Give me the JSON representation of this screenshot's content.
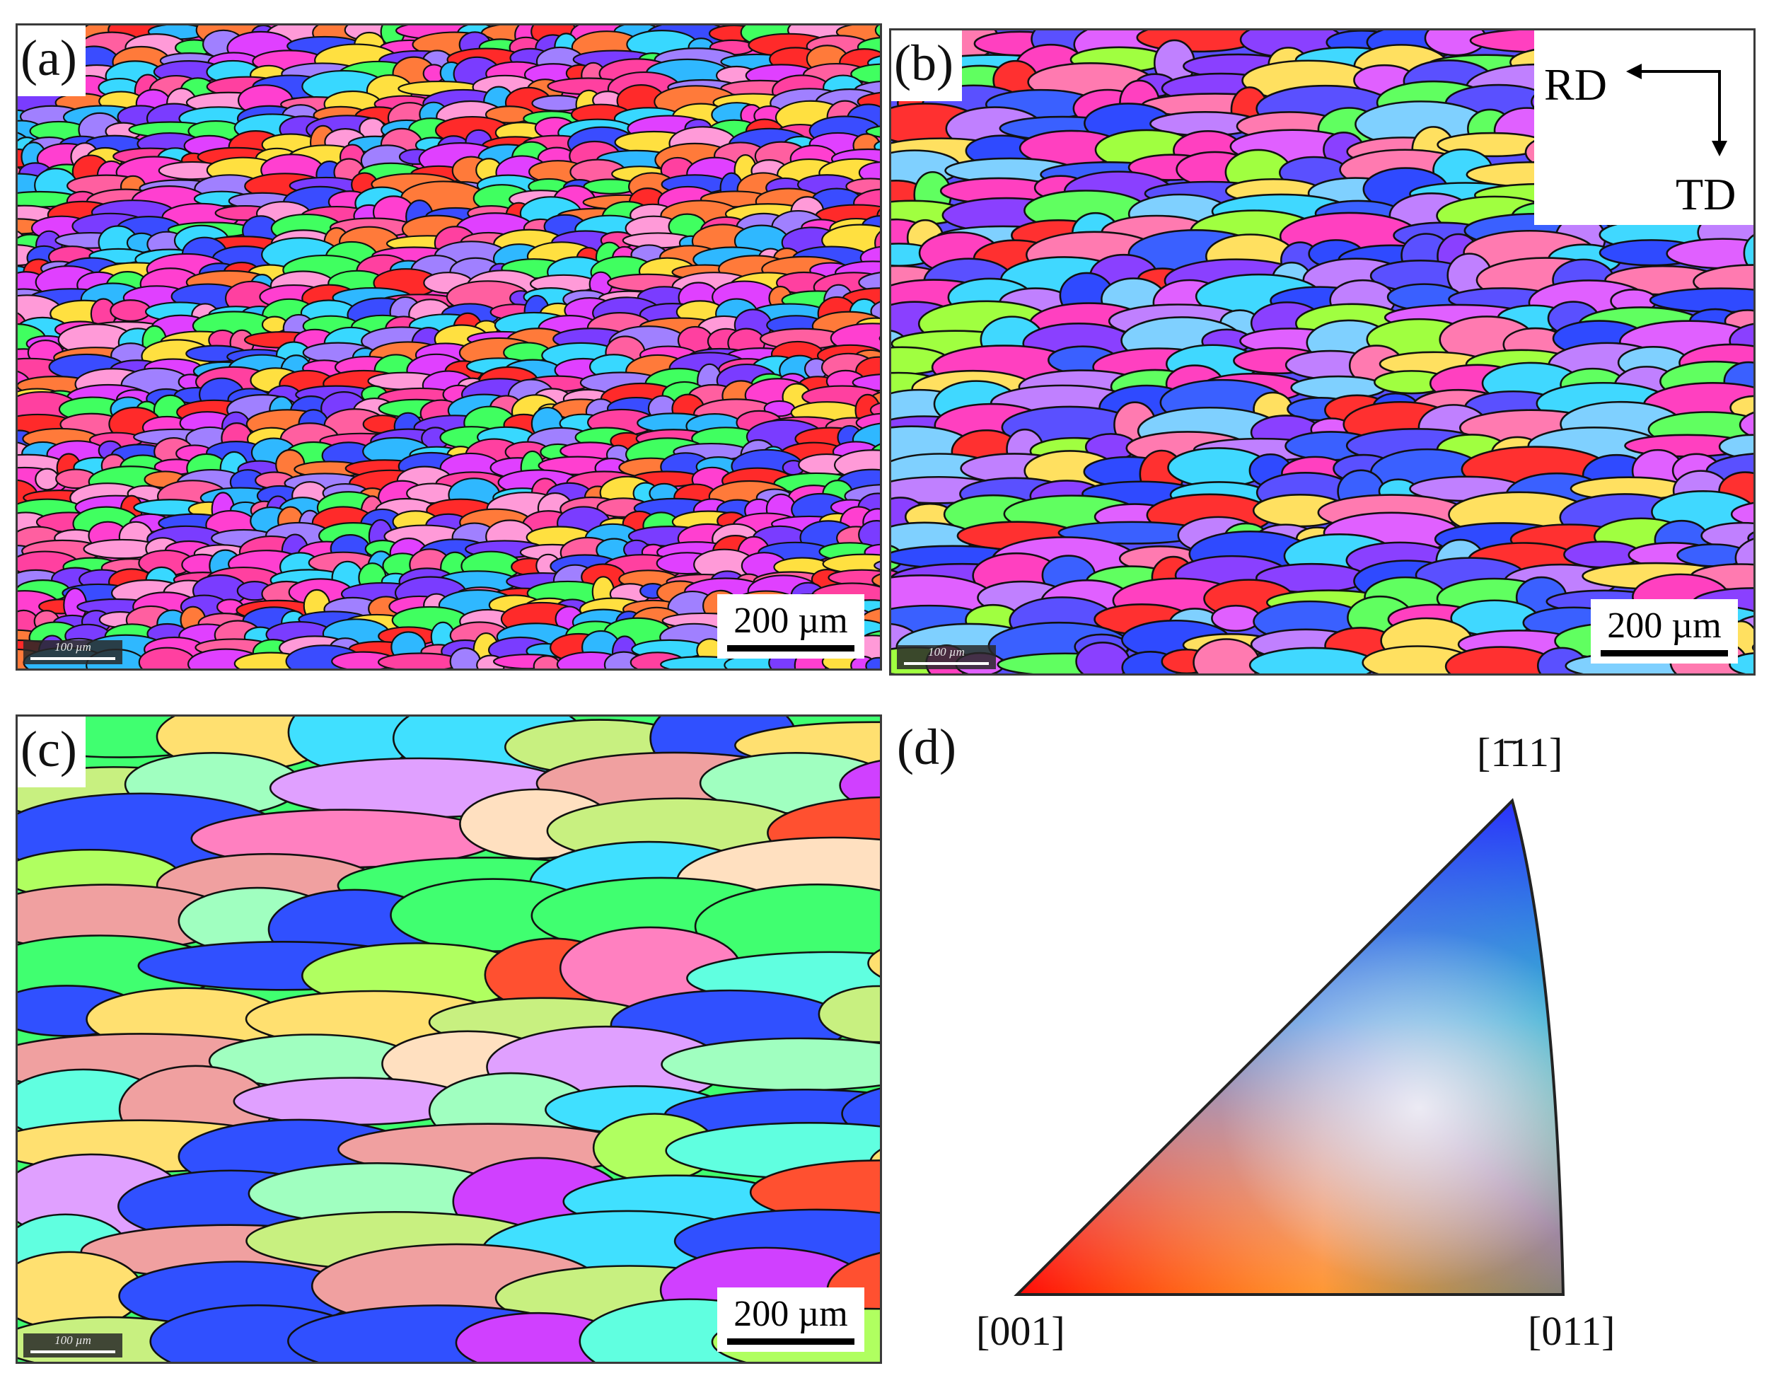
{
  "panels": {
    "a": {
      "label": "(a)",
      "scale_text": "200 µm",
      "small_scale_text": "100 µm"
    },
    "b": {
      "label": "(b)",
      "scale_text": "200 µm",
      "small_scale_text": "100 µm",
      "axes": {
        "rd": "RD",
        "td": "TD"
      }
    },
    "c": {
      "label": "(c)",
      "scale_text": "200 µm",
      "small_scale_text": "100 µm"
    },
    "d": {
      "label": "(d)",
      "corners": {
        "top": "[1̄11]",
        "left": "[001]",
        "right": "[011]"
      }
    }
  },
  "colors": {
    "ipf_red": "#ff0000",
    "ipf_green": "#00ff00",
    "ipf_blue": "#2020ff",
    "boundary": "#111111"
  }
}
